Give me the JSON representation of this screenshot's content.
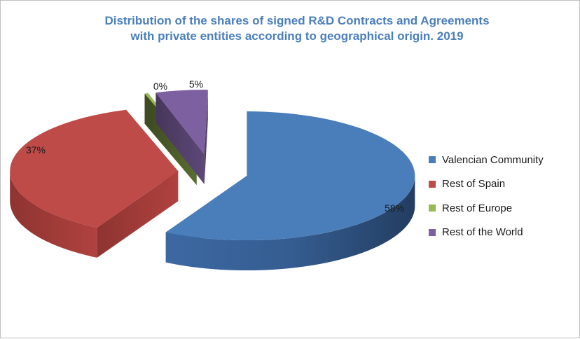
{
  "chart_data": {
    "type": "pie",
    "title_lines": [
      "Distribution of the shares of signed R&D Contracts and Agreements",
      "with private entities according to geographical origin. 2019"
    ],
    "categories": [
      "Valencian Community",
      "Rest of Spain",
      "Rest of Europe",
      "Rest of the World"
    ],
    "values": [
      58,
      37,
      0,
      5
    ],
    "data_labels": [
      "58%",
      "37%",
      "0%",
      "5%"
    ],
    "colors": [
      "#4a7ebb",
      "#be4b48",
      "#98b954",
      "#7d60a0"
    ],
    "style": "3d-exploded",
    "legend": "right"
  }
}
